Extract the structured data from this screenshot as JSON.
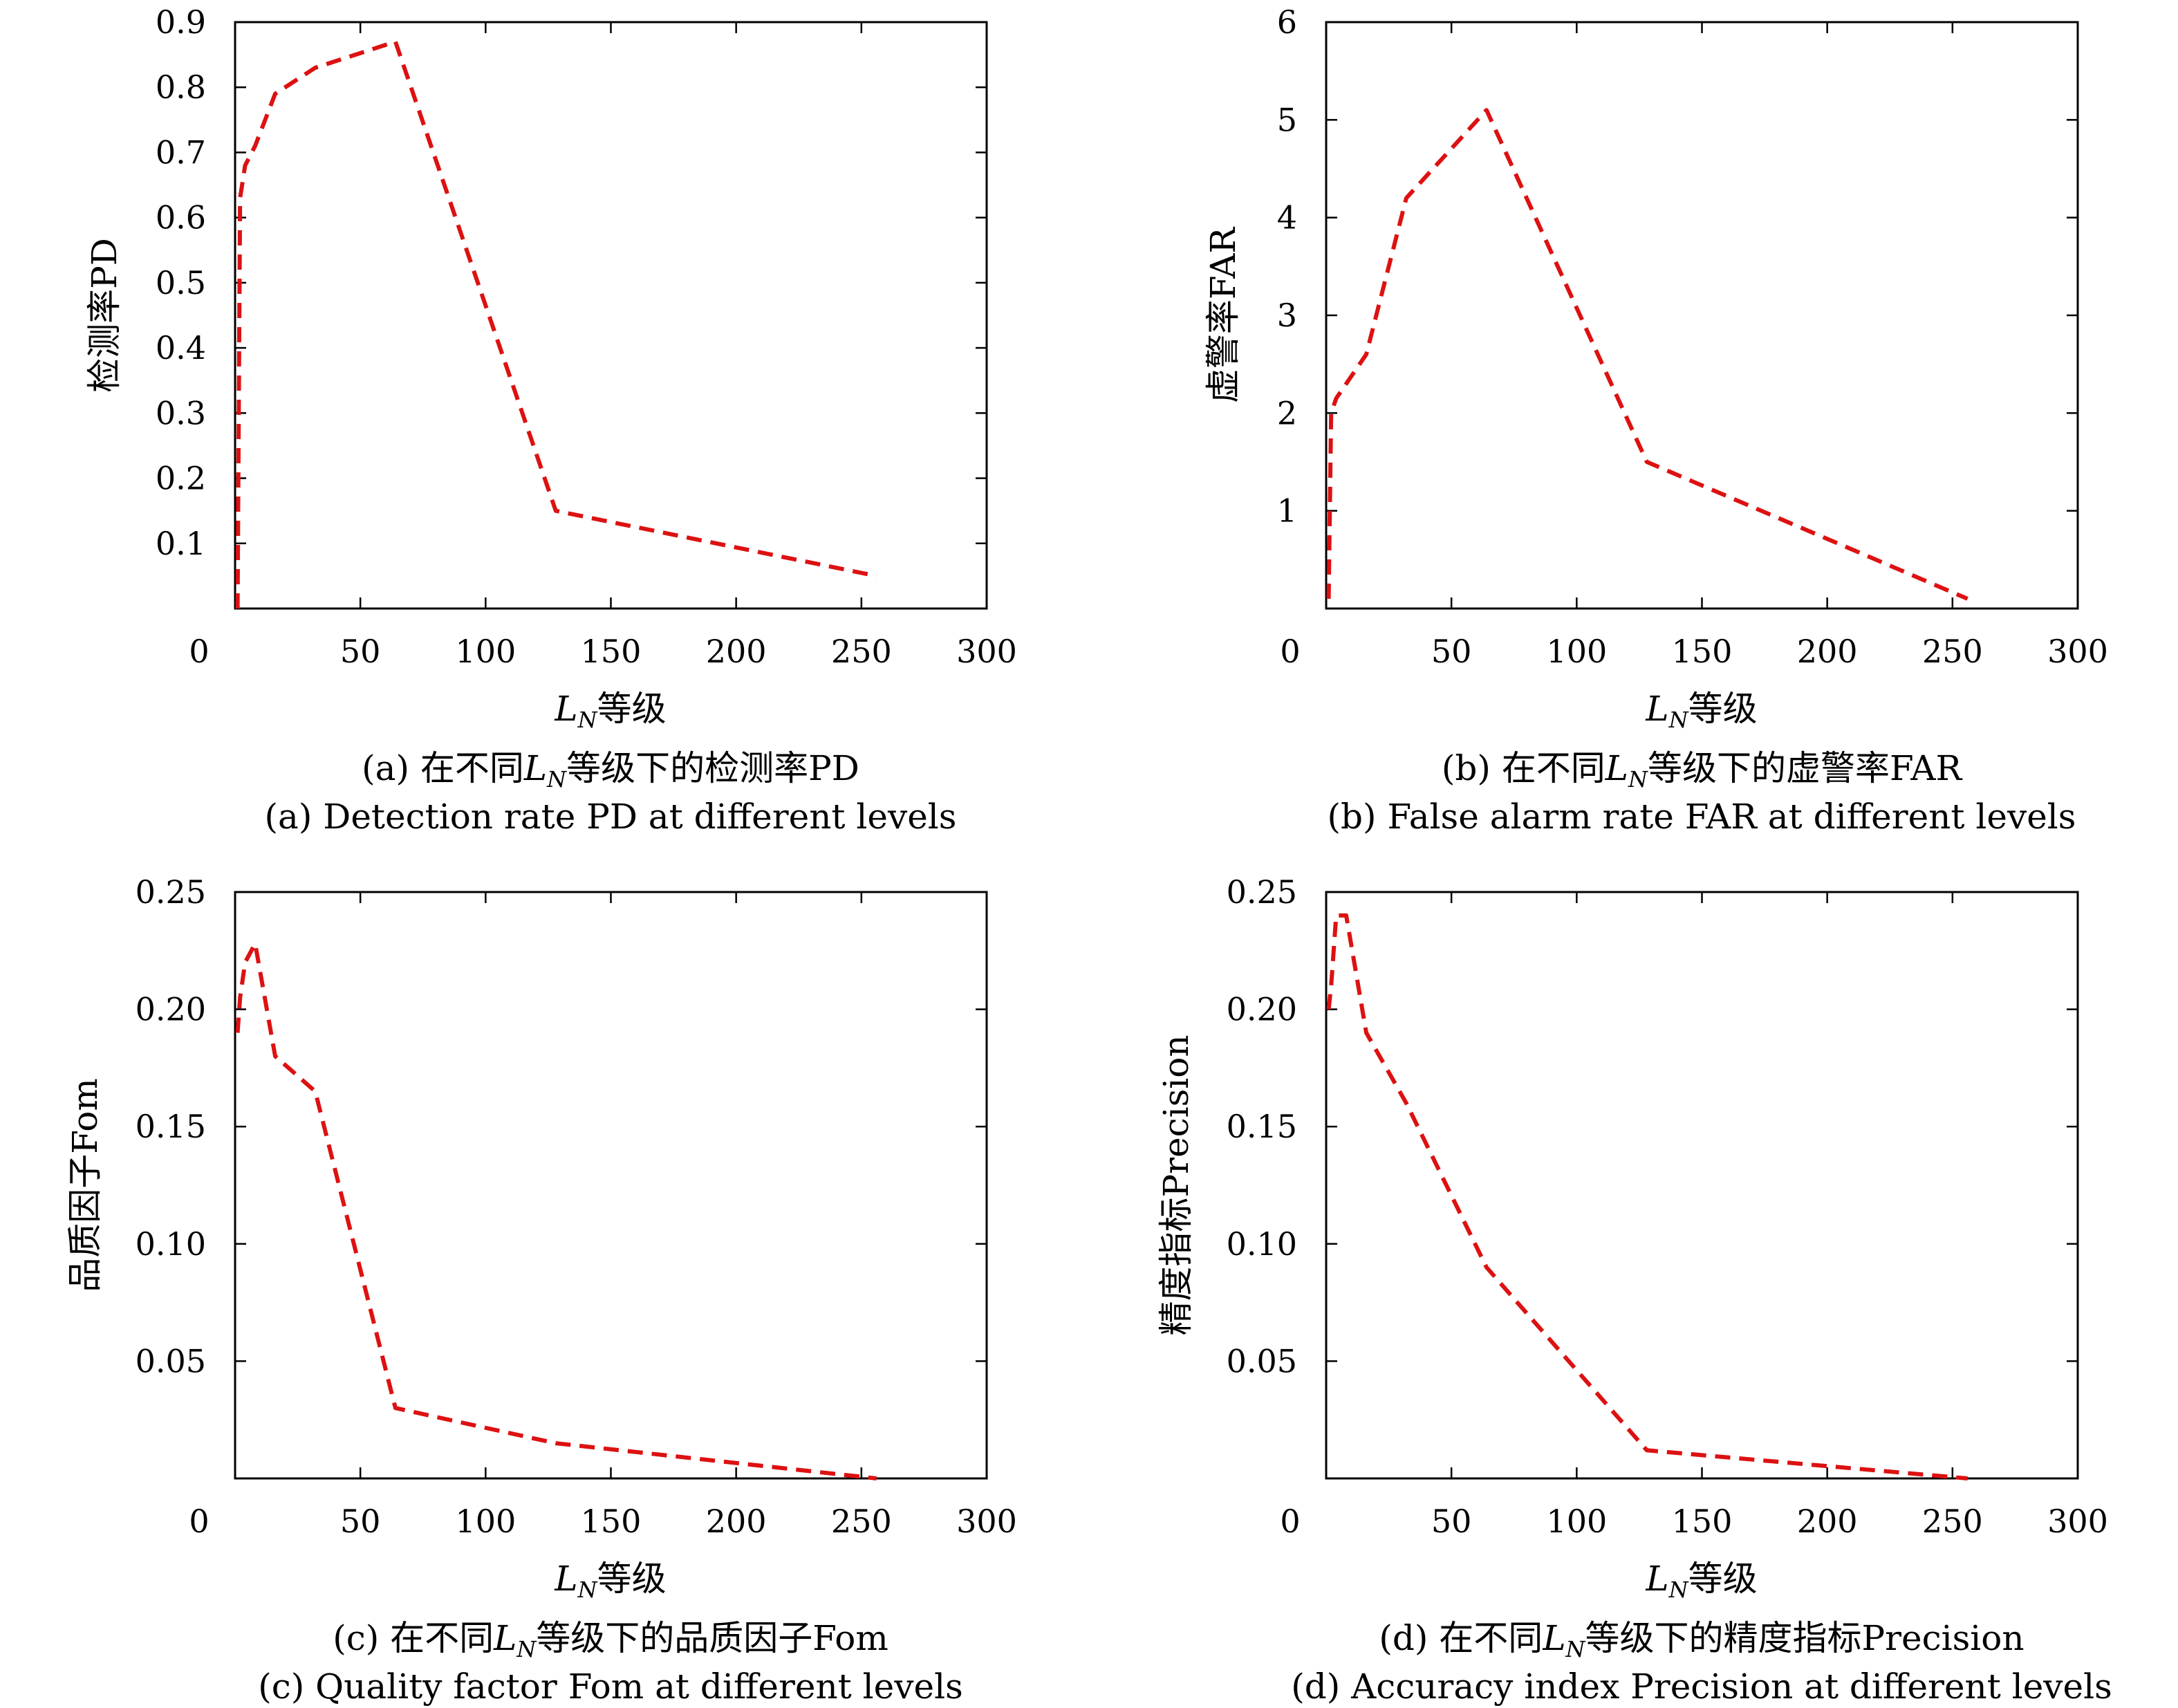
{
  "chart_data": [
    {
      "id": "a",
      "type": "line",
      "ylabel": "检测率PD",
      "xlabel_math": "L",
      "xlabel_sub": "N",
      "xlabel_text": "等级",
      "caption_cn": {
        "prefix": "(a) 在不同",
        "math": "L",
        "sub": "N",
        "suffix": "等级下的检测率PD"
      },
      "caption_en": "(a) Detection rate PD at different levels",
      "xlim": [
        0,
        300
      ],
      "ylim": [
        0,
        0.9
      ],
      "xticks": [
        0,
        50,
        100,
        150,
        200,
        250,
        300
      ],
      "xtick_labels": [
        "0",
        "50",
        "100",
        "150",
        "200",
        "250",
        "300"
      ],
      "yticks": [
        0.1,
        0.2,
        0.3,
        0.4,
        0.5,
        0.6,
        0.7,
        0.8,
        0.9
      ],
      "ytick_labels": [
        "0.1",
        "0.2",
        "0.3",
        "0.4",
        "0.5",
        "0.6",
        "0.7",
        "0.8",
        "0.9"
      ],
      "color": "#dd1111",
      "x": [
        1,
        2,
        4,
        8,
        16,
        32,
        64,
        128,
        256
      ],
      "y": [
        0.0,
        0.63,
        0.68,
        0.71,
        0.79,
        0.83,
        0.87,
        0.15,
        0.05
      ]
    },
    {
      "id": "b",
      "type": "line",
      "ylabel": "虚警率FAR",
      "xlabel_math": "L",
      "xlabel_sub": "N",
      "xlabel_text": "等级",
      "caption_cn": {
        "prefix": "(b) 在不同",
        "math": "L",
        "sub": "N",
        "suffix": "等级下的虚警率FAR"
      },
      "caption_en": "(b) False alarm rate FAR at different levels",
      "xlim": [
        0,
        300
      ],
      "ylim": [
        0,
        6
      ],
      "xticks": [
        0,
        50,
        100,
        150,
        200,
        250,
        300
      ],
      "xtick_labels": [
        "0",
        "50",
        "100",
        "150",
        "200",
        "250",
        "300"
      ],
      "yticks": [
        1,
        2,
        3,
        4,
        5,
        6
      ],
      "ytick_labels": [
        "1",
        "2",
        "3",
        "4",
        "5",
        "6"
      ],
      "color": "#dd1111",
      "x": [
        1,
        2,
        4,
        8,
        16,
        32,
        64,
        128,
        256
      ],
      "y": [
        0.1,
        2.0,
        2.15,
        2.3,
        2.6,
        4.2,
        5.1,
        1.5,
        0.1
      ]
    },
    {
      "id": "c",
      "type": "line",
      "ylabel": "品质因子Fom",
      "xlabel_math": "L",
      "xlabel_sub": "N",
      "xlabel_text": "等级",
      "caption_cn": {
        "prefix": "(c) 在不同",
        "math": "L",
        "sub": "N",
        "suffix": "等级下的品质因子Fom"
      },
      "caption_en": "(c) Quality factor Fom at different levels",
      "xlim": [
        0,
        300
      ],
      "ylim": [
        0,
        0.25
      ],
      "xticks": [
        0,
        50,
        100,
        150,
        200,
        250,
        300
      ],
      "xtick_labels": [
        "0",
        "50",
        "100",
        "150",
        "200",
        "250",
        "300"
      ],
      "yticks": [
        0.05,
        0.1,
        0.15,
        0.2,
        0.25
      ],
      "ytick_labels": [
        "0.05",
        "0.10",
        "0.15",
        "0.20",
        "0.25"
      ],
      "color": "#dd1111",
      "x": [
        1,
        2,
        4,
        8,
        16,
        32,
        64,
        128,
        256
      ],
      "y": [
        0.19,
        0.205,
        0.22,
        0.228,
        0.18,
        0.165,
        0.03,
        0.015,
        0.0
      ]
    },
    {
      "id": "d",
      "type": "line",
      "ylabel": "精度指标Precision",
      "xlabel_math": "L",
      "xlabel_sub": "N",
      "xlabel_text": "等级",
      "caption_cn": {
        "prefix": "(d) 在不同",
        "math": "L",
        "sub": "N",
        "suffix": "等级下的精度指标Precision"
      },
      "caption_en": "(d) Accuracy index Precision at different levels",
      "xlim": [
        0,
        300
      ],
      "ylim": [
        0,
        0.25
      ],
      "xticks": [
        0,
        50,
        100,
        150,
        200,
        250,
        300
      ],
      "xtick_labels": [
        "0",
        "50",
        "100",
        "150",
        "200",
        "250",
        "300"
      ],
      "yticks": [
        0.05,
        0.1,
        0.15,
        0.2,
        0.25
      ],
      "ytick_labels": [
        "0.05",
        "0.10",
        "0.15",
        "0.20",
        "0.25"
      ],
      "color": "#dd1111",
      "x": [
        1,
        2,
        4,
        8,
        16,
        32,
        64,
        128,
        256
      ],
      "y": [
        0.2,
        0.21,
        0.24,
        0.24,
        0.19,
        0.16,
        0.09,
        0.012,
        0.0
      ]
    }
  ]
}
